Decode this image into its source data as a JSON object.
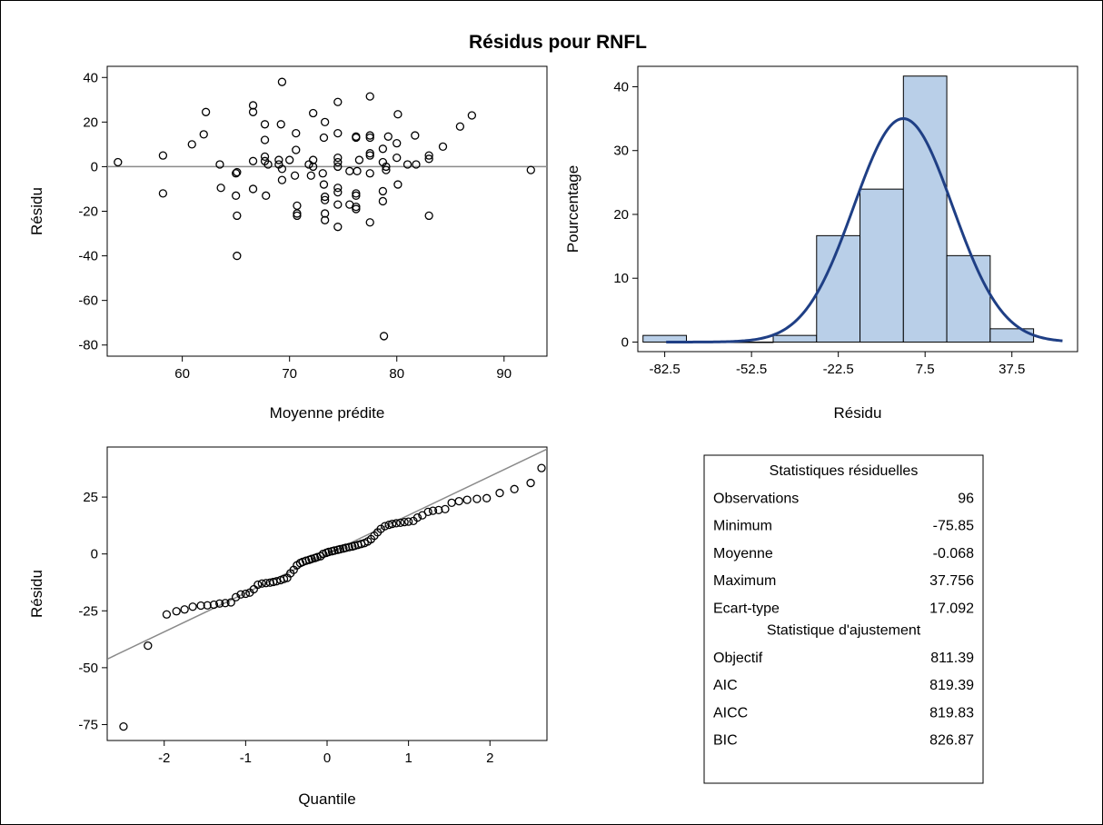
{
  "title": "Résidus pour RNFL",
  "chart_data": [
    {
      "type": "scatter",
      "id": "residual-vs-predicted",
      "xlabel": "Moyenne prédite",
      "ylabel": "Résidu",
      "xlim": [
        53,
        94
      ],
      "ylim": [
        -85,
        45
      ],
      "xticks": [
        60,
        70,
        80,
        90
      ],
      "yticks": [
        40,
        20,
        0,
        -20,
        -40,
        -60,
        -80
      ],
      "reference_line_y": 0,
      "points": [
        [
          54,
          2
        ],
        [
          58.2,
          5
        ],
        [
          58.2,
          -12
        ],
        [
          60.9,
          10
        ],
        [
          62,
          14.5
        ],
        [
          62.2,
          24.5
        ],
        [
          63.5,
          1
        ],
        [
          63.6,
          -9.5
        ],
        [
          65,
          -3
        ],
        [
          65.1,
          -2.5
        ],
        [
          65,
          -13
        ],
        [
          65.1,
          -22
        ],
        [
          65.1,
          -40
        ],
        [
          66.6,
          2.5
        ],
        [
          66.6,
          -10
        ],
        [
          66.6,
          24.5
        ],
        [
          66.6,
          27.5
        ],
        [
          67.7,
          19
        ],
        [
          67.7,
          12
        ],
        [
          67.7,
          4.5
        ],
        [
          67.7,
          2.5
        ],
        [
          67.8,
          -13
        ],
        [
          68,
          1
        ],
        [
          69,
          1
        ],
        [
          69,
          3
        ],
        [
          69.2,
          19
        ],
        [
          69.3,
          38
        ],
        [
          69.3,
          -1
        ],
        [
          69.3,
          -6
        ],
        [
          70,
          3
        ],
        [
          70.5,
          -4
        ],
        [
          70.6,
          15
        ],
        [
          70.7,
          -17.5
        ],
        [
          70.7,
          -21
        ],
        [
          70.7,
          -22
        ],
        [
          70.6,
          7.5
        ],
        [
          71.8,
          1
        ],
        [
          72.2,
          24
        ],
        [
          72,
          -4
        ],
        [
          72.2,
          3
        ],
        [
          72.2,
          0
        ],
        [
          73.1,
          -3
        ],
        [
          73.2,
          -8
        ],
        [
          73.2,
          13
        ],
        [
          73.3,
          20
        ],
        [
          73.3,
          -13.5
        ],
        [
          73.3,
          -15
        ],
        [
          73.3,
          -21
        ],
        [
          73.3,
          -24
        ],
        [
          74.5,
          2
        ],
        [
          74.5,
          -9.5
        ],
        [
          74.5,
          -11.5
        ],
        [
          74.5,
          -17
        ],
        [
          74.5,
          -27
        ],
        [
          74.5,
          29
        ],
        [
          74.5,
          15
        ],
        [
          74.5,
          4
        ],
        [
          74.5,
          0
        ],
        [
          75.6,
          -2
        ],
        [
          75.6,
          -17
        ],
        [
          76.2,
          13
        ],
        [
          76.2,
          13.5
        ],
        [
          76.2,
          -12
        ],
        [
          76.2,
          -13
        ],
        [
          76.2,
          -18
        ],
        [
          76.2,
          -19
        ],
        [
          76.3,
          -2
        ],
        [
          76.5,
          3
        ],
        [
          77.5,
          31.5
        ],
        [
          77.5,
          14
        ],
        [
          77.5,
          13
        ],
        [
          77.5,
          6
        ],
        [
          77.5,
          5
        ],
        [
          77.5,
          -3
        ],
        [
          77.5,
          -25
        ],
        [
          78.7,
          2
        ],
        [
          78.7,
          8
        ],
        [
          78.7,
          -11
        ],
        [
          78.7,
          -15.5
        ],
        [
          78.8,
          -76
        ],
        [
          79,
          -1.5
        ],
        [
          79,
          0
        ],
        [
          79.2,
          13.5
        ],
        [
          80,
          4
        ],
        [
          80,
          10.5
        ],
        [
          80.1,
          -8
        ],
        [
          80.1,
          23.5
        ],
        [
          81,
          1
        ],
        [
          81.8,
          1
        ],
        [
          81.7,
          14
        ],
        [
          83,
          3.5
        ],
        [
          83,
          5
        ],
        [
          83,
          -22
        ],
        [
          84.3,
          9
        ],
        [
          85.9,
          18
        ],
        [
          87,
          23
        ],
        [
          92.5,
          -1.5
        ]
      ]
    },
    {
      "type": "bar",
      "id": "residual-histogram",
      "xlabel": "Résidu",
      "ylabel": "Pourcentage",
      "xlim": [
        -91.8,
        60.2
      ],
      "ylim": [
        -1.5,
        43.2
      ],
      "xticks": [
        "-82.5",
        "-52.5",
        "-22.5",
        "7.5",
        "37.5"
      ],
      "xtick_values": [
        -82.5,
        -52.5,
        -22.5,
        7.5,
        37.5
      ],
      "yticks": [
        0,
        10,
        20,
        30,
        40
      ],
      "bin_width": 15,
      "bin_centers": [
        -82.5,
        -67.5,
        -52.5,
        -37.5,
        -22.5,
        -7.5,
        7.5,
        22.5,
        37.5
      ],
      "values": [
        1.04,
        0,
        0,
        1.04,
        16.67,
        23.96,
        41.67,
        13.54,
        2.08
      ],
      "bar_color": "#b9cfe8",
      "curve_color": "#1f3f85",
      "normal_curve": {
        "mean": -0.068,
        "sd": 17.092
      }
    },
    {
      "type": "scatter",
      "id": "residual-qq",
      "xlabel": "Quantile",
      "ylabel": "Résidu",
      "xlim": [
        -2.7,
        2.7
      ],
      "ylim": [
        -82,
        47
      ],
      "xticks": [
        -2,
        -1,
        0,
        1,
        2
      ],
      "yticks": [
        25,
        0,
        -25,
        -50,
        -75
      ],
      "reference_line": {
        "intercept": -0.068,
        "slope": 17.092
      },
      "points": [
        [
          -2.5,
          -75.85
        ],
        [
          -2.2,
          -40.3
        ],
        [
          -1.97,
          -26.6
        ],
        [
          -1.85,
          -25.2
        ],
        [
          -1.75,
          -24.4
        ],
        [
          -1.65,
          -23.2
        ],
        [
          -1.55,
          -22.7
        ],
        [
          -1.47,
          -22.6
        ],
        [
          -1.39,
          -22.3
        ],
        [
          -1.32,
          -21.8
        ],
        [
          -1.25,
          -21.6
        ],
        [
          -1.18,
          -21.3
        ],
        [
          -1.12,
          -19
        ],
        [
          -1.06,
          -17.8
        ],
        [
          -1,
          -17.5
        ],
        [
          -0.95,
          -17
        ],
        [
          -0.9,
          -15.5
        ],
        [
          -0.85,
          -13.5
        ],
        [
          -0.8,
          -13
        ],
        [
          -0.75,
          -12.8
        ],
        [
          -0.7,
          -12.6
        ],
        [
          -0.66,
          -12.3
        ],
        [
          -0.62,
          -12
        ],
        [
          -0.57,
          -11.5
        ],
        [
          -0.53,
          -11
        ],
        [
          -0.49,
          -10.5
        ],
        [
          -0.45,
          -8.5
        ],
        [
          -0.41,
          -7
        ],
        [
          -0.37,
          -5
        ],
        [
          -0.33,
          -4
        ],
        [
          -0.3,
          -3.5
        ],
        [
          -0.26,
          -3
        ],
        [
          -0.22,
          -2.6
        ],
        [
          -0.19,
          -2.2
        ],
        [
          -0.15,
          -1.8
        ],
        [
          -0.12,
          -1.4
        ],
        [
          -0.08,
          -1
        ],
        [
          -0.05,
          0
        ],
        [
          -0.01,
          0.5
        ],
        [
          0.02,
          0.9
        ],
        [
          0.06,
          1.2
        ],
        [
          0.09,
          1.5
        ],
        [
          0.13,
          1.8
        ],
        [
          0.16,
          2.1
        ],
        [
          0.2,
          2.4
        ],
        [
          0.23,
          2.7
        ],
        [
          0.27,
          3
        ],
        [
          0.31,
          3.3
        ],
        [
          0.34,
          3.6
        ],
        [
          0.38,
          4
        ],
        [
          0.42,
          4.4
        ],
        [
          0.46,
          4.8
        ],
        [
          0.5,
          5.5
        ],
        [
          0.54,
          6.5
        ],
        [
          0.58,
          8
        ],
        [
          0.62,
          9.5
        ],
        [
          0.66,
          11
        ],
        [
          0.71,
          12.2
        ],
        [
          0.76,
          12.8
        ],
        [
          0.8,
          13.2
        ],
        [
          0.85,
          13.5
        ],
        [
          0.9,
          13.7
        ],
        [
          0.95,
          14
        ],
        [
          1,
          14.2
        ],
        [
          1.06,
          14.5
        ],
        [
          1.11,
          16
        ],
        [
          1.17,
          17
        ],
        [
          1.24,
          18.5
        ],
        [
          1.3,
          19
        ],
        [
          1.37,
          19.3
        ],
        [
          1.45,
          19.7
        ],
        [
          1.53,
          22.5
        ],
        [
          1.62,
          23.2
        ],
        [
          1.72,
          23.8
        ],
        [
          1.84,
          24.2
        ],
        [
          1.96,
          24.5
        ],
        [
          2.12,
          26.8
        ],
        [
          2.3,
          28.5
        ],
        [
          2.5,
          31.2
        ],
        [
          2.8,
          37.75
        ]
      ]
    },
    {
      "type": "table",
      "id": "residual-stats",
      "sections": [
        {
          "header": "Statistiques résiduelles",
          "rows": [
            {
              "label": "Observations",
              "value": "96"
            },
            {
              "label": "Minimum",
              "value": "-75.85"
            },
            {
              "label": "Moyenne",
              "value": "-0.068"
            },
            {
              "label": "Maximum",
              "value": "37.756"
            },
            {
              "label": "Ecart-type",
              "value": "17.092"
            }
          ]
        },
        {
          "header": "Statistique d'ajustement",
          "rows": [
            {
              "label": "Objectif",
              "value": "811.39"
            },
            {
              "label": "AIC",
              "value": "819.39"
            },
            {
              "label": "AICC",
              "value": "819.83"
            },
            {
              "label": "BIC",
              "value": "826.87"
            }
          ]
        }
      ]
    }
  ]
}
